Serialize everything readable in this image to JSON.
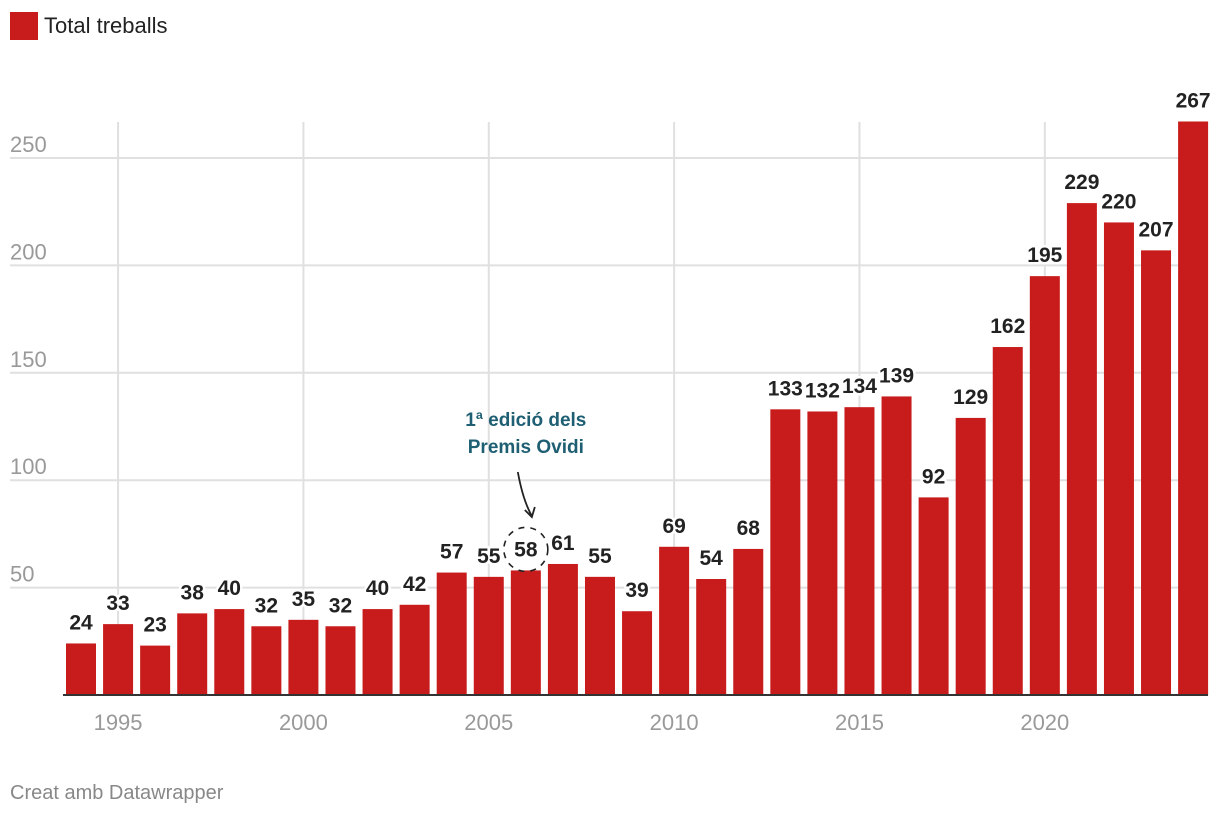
{
  "legend": {
    "label": "Total treballs",
    "color": "#c81c1c"
  },
  "credit": "Creat amb Datawrapper",
  "colors": {
    "bar": "#c81c1c",
    "grid": "#e0e0e0",
    "annotation": "#1e5f73"
  },
  "chart_data": {
    "type": "bar",
    "title": "",
    "xlabel": "",
    "ylabel": "",
    "series": [
      {
        "name": "Total treballs",
        "x": [
          1994,
          1995,
          1996,
          1997,
          1998,
          1999,
          2000,
          2001,
          2002,
          2003,
          2004,
          2005,
          2006,
          2007,
          2008,
          2009,
          2010,
          2011,
          2012,
          2013,
          2014,
          2015,
          2016,
          2017,
          2018,
          2019,
          2020,
          2021,
          2022,
          2023,
          2024
        ],
        "values": [
          24,
          33,
          23,
          38,
          40,
          32,
          35,
          32,
          40,
          42,
          57,
          55,
          58,
          61,
          55,
          39,
          69,
          54,
          68,
          133,
          132,
          134,
          139,
          92,
          129,
          162,
          195,
          229,
          220,
          207,
          267
        ]
      }
    ],
    "ylim": [
      0,
      267
    ],
    "yticks": [
      50,
      100,
      150,
      200,
      250
    ],
    "xticks": [
      1995,
      2000,
      2005,
      2010,
      2015,
      2020
    ],
    "grid": true,
    "annotations": [
      {
        "x": 2006,
        "lines": [
          "1ª edició dels",
          "Premis Ovidi"
        ]
      }
    ]
  }
}
